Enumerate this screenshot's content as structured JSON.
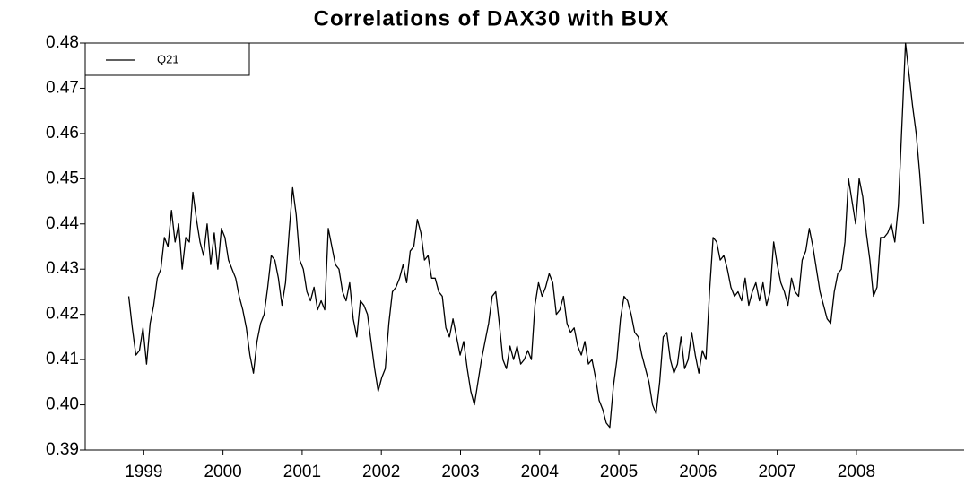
{
  "chart_data": {
    "type": "line",
    "title": "Correlations of DAX30 with BUX",
    "x": [
      1998.81,
      1998.855,
      1998.9,
      1998.945,
      1998.99,
      1999.035,
      1999.08,
      1999.125,
      1999.17,
      1999.215,
      1999.26,
      1999.305,
      1999.35,
      1999.395,
      1999.44,
      1999.485,
      1999.53,
      1999.575,
      1999.62,
      1999.665,
      1999.71,
      1999.755,
      1999.8,
      1999.845,
      1999.89,
      1999.935,
      1999.98,
      2000.025,
      2000.07,
      2000.115,
      2000.16,
      2000.205,
      2000.25,
      2000.295,
      2000.34,
      2000.385,
      2000.43,
      2000.475,
      2000.52,
      2000.565,
      2000.61,
      2000.655,
      2000.7,
      2000.745,
      2000.79,
      2000.835,
      2000.88,
      2000.925,
      2000.97,
      2001.015,
      2001.06,
      2001.105,
      2001.15,
      2001.195,
      2001.24,
      2001.285,
      2001.33,
      2001.375,
      2001.42,
      2001.465,
      2001.51,
      2001.555,
      2001.6,
      2001.645,
      2001.69,
      2001.735,
      2001.78,
      2001.825,
      2001.87,
      2001.915,
      2001.96,
      2002.005,
      2002.05,
      2002.095,
      2002.14,
      2002.185,
      2002.23,
      2002.275,
      2002.32,
      2002.365,
      2002.41,
      2002.455,
      2002.5,
      2002.545,
      2002.59,
      2002.635,
      2002.68,
      2002.725,
      2002.77,
      2002.815,
      2002.86,
      2002.905,
      2002.95,
      2002.995,
      2003.04,
      2003.085,
      2003.13,
      2003.175,
      2003.22,
      2003.265,
      2003.31,
      2003.355,
      2003.4,
      2003.445,
      2003.49,
      2003.535,
      2003.58,
      2003.625,
      2003.67,
      2003.715,
      2003.76,
      2003.805,
      2003.85,
      2003.895,
      2003.94,
      2003.985,
      2004.03,
      2004.075,
      2004.12,
      2004.165,
      2004.21,
      2004.255,
      2004.3,
      2004.345,
      2004.39,
      2004.435,
      2004.48,
      2004.525,
      2004.57,
      2004.615,
      2004.66,
      2004.705,
      2004.75,
      2004.795,
      2004.84,
      2004.885,
      2004.93,
      2004.975,
      2005.02,
      2005.065,
      2005.11,
      2005.155,
      2005.2,
      2005.245,
      2005.29,
      2005.335,
      2005.38,
      2005.425,
      2005.47,
      2005.515,
      2005.56,
      2005.605,
      2005.65,
      2005.695,
      2005.74,
      2005.785,
      2005.83,
      2005.875,
      2005.92,
      2005.965,
      2006.01,
      2006.055,
      2006.1,
      2006.145,
      2006.19,
      2006.235,
      2006.28,
      2006.325,
      2006.37,
      2006.415,
      2006.46,
      2006.505,
      2006.55,
      2006.595,
      2006.64,
      2006.685,
      2006.73,
      2006.775,
      2006.82,
      2006.865,
      2006.91,
      2006.955,
      2007.0,
      2007.045,
      2007.09,
      2007.135,
      2007.18,
      2007.225,
      2007.27,
      2007.315,
      2007.36,
      2007.405,
      2007.45,
      2007.495,
      2007.54,
      2007.585,
      2007.63,
      2007.675,
      2007.72,
      2007.765,
      2007.81,
      2007.855,
      2007.9,
      2007.945,
      2007.99,
      2008.035,
      2008.08,
      2008.125,
      2008.17,
      2008.215,
      2008.26,
      2008.305,
      2008.35,
      2008.395,
      2008.44,
      2008.485,
      2008.53,
      2008.575,
      2008.62,
      2008.665,
      2008.71,
      2008.755,
      2008.8,
      2008.845
    ],
    "series": [
      {
        "name": "Q21",
        "color": "#000000",
        "values": [
          0.424,
          0.417,
          0.411,
          0.412,
          0.417,
          0.409,
          0.418,
          0.422,
          0.428,
          0.43,
          0.437,
          0.435,
          0.443,
          0.436,
          0.44,
          0.43,
          0.437,
          0.436,
          0.447,
          0.441,
          0.436,
          0.433,
          0.44,
          0.431,
          0.438,
          0.43,
          0.439,
          0.437,
          0.432,
          0.43,
          0.428,
          0.424,
          0.421,
          0.417,
          0.411,
          0.407,
          0.414,
          0.418,
          0.42,
          0.426,
          0.433,
          0.432,
          0.428,
          0.422,
          0.427,
          0.438,
          0.448,
          0.442,
          0.432,
          0.43,
          0.425,
          0.423,
          0.426,
          0.421,
          0.423,
          0.421,
          0.439,
          0.435,
          0.431,
          0.43,
          0.425,
          0.423,
          0.427,
          0.419,
          0.415,
          0.423,
          0.422,
          0.42,
          0.414,
          0.408,
          0.403,
          0.406,
          0.408,
          0.418,
          0.425,
          0.426,
          0.428,
          0.431,
          0.427,
          0.434,
          0.435,
          0.441,
          0.438,
          0.432,
          0.433,
          0.428,
          0.428,
          0.425,
          0.424,
          0.417,
          0.415,
          0.419,
          0.415,
          0.411,
          0.414,
          0.408,
          0.403,
          0.4,
          0.405,
          0.41,
          0.414,
          0.418,
          0.424,
          0.425,
          0.418,
          0.41,
          0.408,
          0.413,
          0.41,
          0.413,
          0.409,
          0.41,
          0.412,
          0.41,
          0.422,
          0.427,
          0.424,
          0.426,
          0.429,
          0.427,
          0.42,
          0.421,
          0.424,
          0.418,
          0.416,
          0.417,
          0.413,
          0.411,
          0.414,
          0.409,
          0.41,
          0.406,
          0.401,
          0.399,
          0.396,
          0.395,
          0.404,
          0.41,
          0.419,
          0.424,
          0.423,
          0.42,
          0.416,
          0.415,
          0.411,
          0.408,
          0.405,
          0.4,
          0.398,
          0.405,
          0.415,
          0.416,
          0.41,
          0.407,
          0.409,
          0.415,
          0.408,
          0.41,
          0.416,
          0.411,
          0.407,
          0.412,
          0.41,
          0.425,
          0.437,
          0.436,
          0.432,
          0.433,
          0.43,
          0.426,
          0.424,
          0.425,
          0.423,
          0.428,
          0.422,
          0.425,
          0.427,
          0.423,
          0.427,
          0.422,
          0.425,
          0.436,
          0.431,
          0.427,
          0.425,
          0.422,
          0.428,
          0.425,
          0.424,
          0.432,
          0.434,
          0.439,
          0.435,
          0.43,
          0.425,
          0.422,
          0.419,
          0.418,
          0.425,
          0.429,
          0.43,
          0.436,
          0.45,
          0.445,
          0.44,
          0.45,
          0.446,
          0.438,
          0.432,
          0.424,
          0.426,
          0.437,
          0.437,
          0.438,
          0.44,
          0.436,
          0.444,
          0.462,
          0.48,
          0.473,
          0.466,
          0.46,
          0.451,
          0.44
        ]
      }
    ],
    "xlim": [
      1998.26,
      2009.36
    ],
    "xticks": [
      1999,
      2000,
      2001,
      2002,
      2003,
      2004,
      2005,
      2006,
      2007,
      2008
    ],
    "ylim": [
      0.39,
      0.48
    ],
    "yticks": [
      {
        "value": 0.39,
        "label": "0.39"
      },
      {
        "value": 0.4,
        "label": "0.40"
      },
      {
        "value": 0.41,
        "label": "0.41"
      },
      {
        "value": 0.42,
        "label": "0.42"
      },
      {
        "value": 0.43,
        "label": "0.43"
      },
      {
        "value": 0.44,
        "label": "0.44"
      },
      {
        "value": 0.45,
        "label": "0.45"
      },
      {
        "value": 0.46,
        "label": "0.46"
      },
      {
        "value": 0.47,
        "label": "0.47"
      },
      {
        "value": 0.48,
        "label": "0.48"
      }
    ],
    "grid": false,
    "legend": "upper-left"
  }
}
